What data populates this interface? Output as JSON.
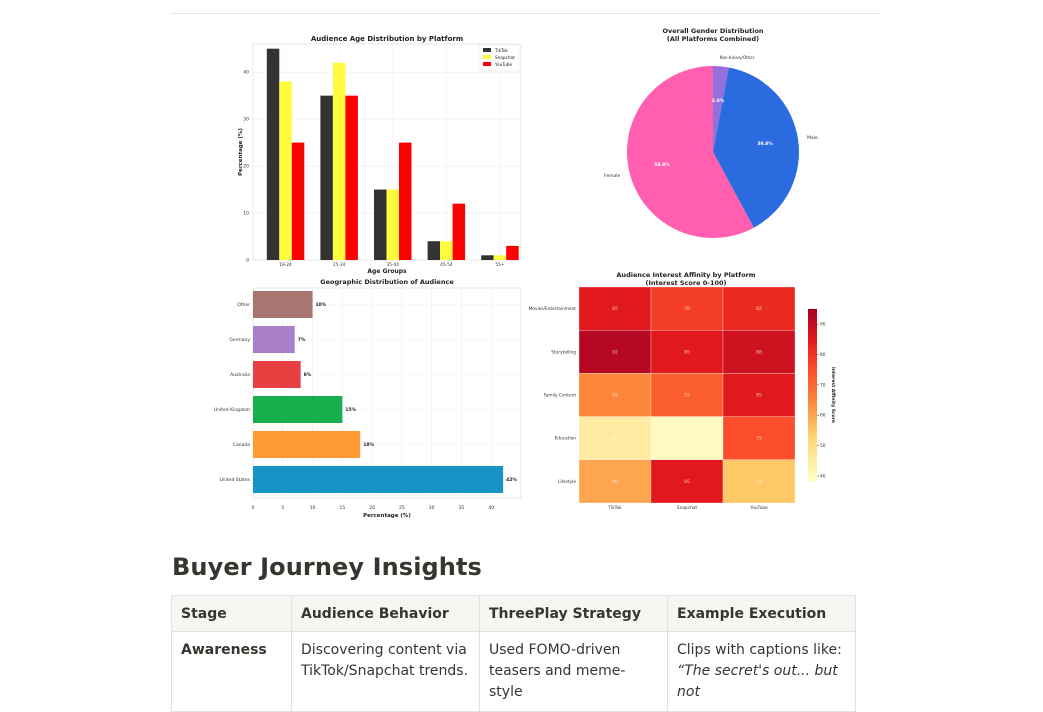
{
  "colors": {
    "tiktok": "#333333",
    "snapchat": "#FFFC3F",
    "youtube": "#FF0000"
  },
  "charts": {
    "age": {
      "title": "Audience Age Distribution by Platform",
      "xlabel": "Age Groups",
      "ylabel": "Percentage (%)",
      "yticks": [
        "0",
        "10",
        "20",
        "30",
        "40"
      ]
    },
    "gender": {
      "title_line1": "Overall Gender Distribution",
      "title_line2": "(All Platforms Combined)",
      "labels": [
        "Non-binary/Other",
        "Male",
        "Female"
      ],
      "pct_labels": [
        "3.0%",
        "39.8%",
        "58.8%"
      ]
    },
    "geo": {
      "title": "Geographic Distribution of Audience",
      "xlabel": "Percentage (%)",
      "xticks": [
        "0",
        "5",
        "10",
        "15",
        "20",
        "25",
        "30",
        "35",
        "40"
      ]
    },
    "interest": {
      "title_line1": "Audience Interest Affinity by Platform",
      "title_line2": "(Interest Score 0-100)",
      "colorbar_label": "Interest Affinity Score",
      "colorbar_ticks": [
        "40",
        "50",
        "60",
        "70",
        "80",
        "90"
      ]
    }
  },
  "chart_data": [
    {
      "type": "bar",
      "title": "Audience Age Distribution by Platform",
      "xlabel": "Age Groups",
      "ylabel": "Percentage (%)",
      "ylim": [
        0,
        46
      ],
      "legend": "top-right",
      "grid": true,
      "categories": [
        "18-24",
        "25-34",
        "35-44",
        "45-54",
        "55+"
      ],
      "series": [
        {
          "name": "TikTok",
          "values": [
            45,
            35,
            15,
            4,
            1
          ]
        },
        {
          "name": "Snapchat",
          "values": [
            38,
            42,
            15,
            4,
            1
          ]
        },
        {
          "name": "YouTube",
          "values": [
            25,
            35,
            25,
            12,
            3
          ]
        }
      ]
    },
    {
      "type": "pie",
      "title": "Overall Gender Distribution (All Platforms Combined)",
      "labels": [
        "Non-binary/Other",
        "Male",
        "Female"
      ],
      "values": [
        3.0,
        39.8,
        58.8
      ],
      "colors": [
        "#9370DB",
        "#2A6BE0",
        "#FF5FAE"
      ]
    },
    {
      "type": "bar",
      "orientation": "horizontal",
      "title": "Geographic Distribution of Audience",
      "xlabel": "Percentage (%)",
      "xlim": [
        0,
        45
      ],
      "grid": true,
      "categories": [
        "United States",
        "Canada",
        "United Kingdom",
        "Australia",
        "Germany",
        "Other"
      ],
      "values": [
        42,
        18,
        15,
        8,
        7,
        10
      ],
      "value_labels": [
        "42%",
        "18%",
        "15%",
        "8%",
        "7%",
        "10%"
      ],
      "colors": [
        "#1893C8",
        "#FF9933",
        "#18B04E",
        "#E84040",
        "#A97FC9",
        "#A87570"
      ]
    },
    {
      "type": "heatmap",
      "title": "Audience Interest Affinity by Platform (Interest Score 0-100)",
      "x": [
        "TikTok",
        "Snapchat",
        "YouTube"
      ],
      "y": [
        "Movies/Entertainment",
        "Storytelling",
        "Family Content",
        "Education",
        "Lifestyle"
      ],
      "values": [
        [
          85,
          78,
          82
        ],
        [
          92,
          85,
          88
        ],
        [
          65,
          72,
          85
        ],
        [
          45,
          40,
          75
        ],
        [
          60,
          85,
          55
        ]
      ],
      "colorbar": {
        "label": "Interest Affinity Score",
        "range": [
          38,
          95
        ],
        "colormap": "YlOrRd"
      }
    }
  ],
  "section": {
    "title": "Buyer Journey Insights"
  },
  "table": {
    "headers": [
      "Stage",
      "Audience Behavior",
      "ThreePlay Strategy",
      "Example Execution"
    ],
    "rows": [
      {
        "stage": "Awareness",
        "behavior_1": "Discovering content via",
        "behavior_2": "TikTok/Snapchat trends.",
        "strategy_1": "Used FOMO-driven",
        "strategy_2": "teasers and meme-style",
        "execution_1": "Clips with captions like:",
        "execution_2": "“The secret's out... but not"
      }
    ]
  }
}
